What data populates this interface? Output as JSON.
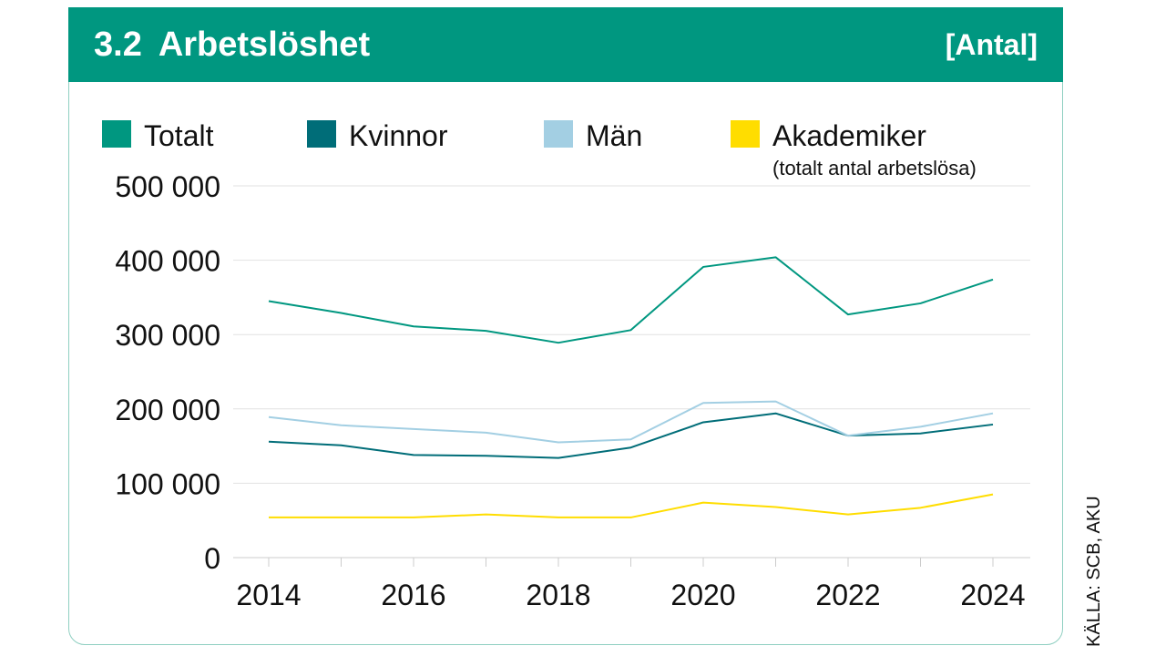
{
  "header": {
    "number": "3.2",
    "title": "Arbetslöshet",
    "unit": "[Antal]"
  },
  "source": "KÄLLA: SCB, AKU",
  "colors": {
    "header": "#009780",
    "grid": "#e2e2e2",
    "axis": "#cccccc"
  },
  "chart_data": {
    "type": "line",
    "x": [
      2014,
      2015,
      2016,
      2017,
      2018,
      2019,
      2020,
      2021,
      2022,
      2023,
      2024
    ],
    "x_tick_labels": [
      "2014",
      "2016",
      "2018",
      "2020",
      "2022",
      "2024"
    ],
    "y_tick_labels": [
      "500 000",
      "400 000",
      "300 000",
      "200 000",
      "100 000",
      "0"
    ],
    "ylim": [
      0,
      500000
    ],
    "grid": true,
    "legend_position": "top",
    "series": [
      {
        "name": "Totalt",
        "color": "#009780",
        "values": [
          345000,
          329000,
          311000,
          305000,
          289000,
          306000,
          391000,
          404000,
          327000,
          342000,
          374000
        ]
      },
      {
        "name": "Kvinnor",
        "color": "#006d78",
        "values": [
          156000,
          151000,
          138000,
          137000,
          134000,
          148000,
          182000,
          194000,
          164000,
          167000,
          179000
        ]
      },
      {
        "name": "Män",
        "color": "#a3cfe3",
        "values": [
          189000,
          178000,
          173000,
          168000,
          155000,
          159000,
          208000,
          210000,
          164000,
          176000,
          194000
        ]
      },
      {
        "name": "Akademiker",
        "note": "(totalt antal arbetslösa)",
        "color": "#ffdd00",
        "values": [
          54000,
          54000,
          54000,
          58000,
          54000,
          54000,
          74000,
          68000,
          58000,
          67000,
          85000
        ]
      }
    ]
  }
}
